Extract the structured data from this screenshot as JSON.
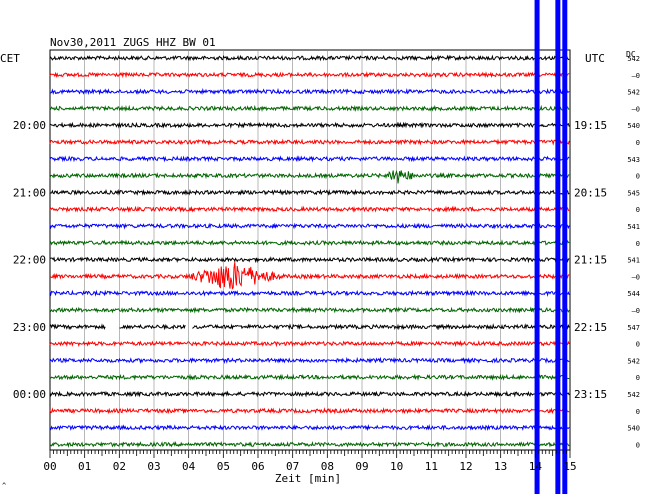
{
  "header": {
    "title": "Nov30,2011   ZUGS HHZ BW 01",
    "left_label": "CET",
    "right_label": "UTC",
    "dc_label": "DC"
  },
  "xaxis": {
    "label": "Zeit [min]",
    "ticks": [
      "00",
      "01",
      "02",
      "03",
      "04",
      "05",
      "06",
      "07",
      "08",
      "09",
      "10",
      "11",
      "12",
      "13",
      "14",
      "15"
    ]
  },
  "chart_data": {
    "type": "line",
    "title": "Nov30,2011   ZUGS HHZ BW 01",
    "xlabel": "Zeit [min]",
    "ylabel": "",
    "xlim": [
      0,
      15
    ],
    "grid": true,
    "trace_colors": [
      "#000000",
      "#ff0000",
      "#0000ff",
      "#006400"
    ],
    "left_time_labels": [
      {
        "row": 4,
        "label": "20:00"
      },
      {
        "row": 8,
        "label": "21:00"
      },
      {
        "row": 12,
        "label": "22:00"
      },
      {
        "row": 16,
        "label": "23:00"
      },
      {
        "row": 20,
        "label": "00:00"
      }
    ],
    "right_time_labels": [
      {
        "row": 4,
        "label": "19:15"
      },
      {
        "row": 8,
        "label": "20:15"
      },
      {
        "row": 12,
        "label": "21:15"
      },
      {
        "row": 16,
        "label": "22:15"
      },
      {
        "row": 20,
        "label": "23:15"
      }
    ],
    "dc_values": [
      "542",
      "–0",
      "542",
      "–0",
      "540",
      "0",
      "543",
      "0",
      "545",
      "0",
      "541",
      "0",
      "541",
      "–0",
      "544",
      "–0",
      "547",
      "0",
      "542",
      "0",
      "542",
      "0",
      "540",
      "0"
    ],
    "traces": [
      {
        "row": 0,
        "end_min": 15
      },
      {
        "row": 1,
        "end_min": 15
      },
      {
        "row": 2,
        "end_min": 15
      },
      {
        "row": 3,
        "end_min": 15
      },
      {
        "row": 4,
        "end_min": 15
      },
      {
        "row": 5,
        "end_min": 15
      },
      {
        "row": 6,
        "end_min": 15
      },
      {
        "row": 7,
        "end_min": 15,
        "events": [
          {
            "start": 9.7,
            "peak": 9.85,
            "end": 11.0,
            "amp": 10
          }
        ]
      },
      {
        "row": 8,
        "end_min": 15
      },
      {
        "row": 9,
        "end_min": 15
      },
      {
        "row": 10,
        "end_min": 15
      },
      {
        "row": 11,
        "end_min": 15
      },
      {
        "row": 12,
        "end_min": 15
      },
      {
        "row": 13,
        "end_min": 15,
        "events": [
          {
            "start": 3.5,
            "peak": 5.2,
            "end": 7.2,
            "amp": 16
          }
        ]
      },
      {
        "row": 14,
        "end_min": 15
      },
      {
        "row": 15,
        "end_min": 15
      },
      {
        "row": 16,
        "end_min": 15,
        "gaps": [
          [
            1.6,
            2.0
          ],
          [
            3.9,
            4.1
          ]
        ]
      },
      {
        "row": 17,
        "end_min": 15
      },
      {
        "row": 18,
        "end_min": 15
      },
      {
        "row": 19,
        "end_min": 15
      },
      {
        "row": 20,
        "end_min": 15
      },
      {
        "row": 21,
        "end_min": 15
      },
      {
        "row": 22,
        "end_min": 15
      },
      {
        "row": 23,
        "end_min": 15
      }
    ],
    "vertical_spikes": [
      {
        "x": 14.05,
        "color": "#0000ff"
      },
      {
        "x": 14.65,
        "color": "#0000ff"
      },
      {
        "x": 14.85,
        "color": "#0000ff"
      }
    ]
  }
}
